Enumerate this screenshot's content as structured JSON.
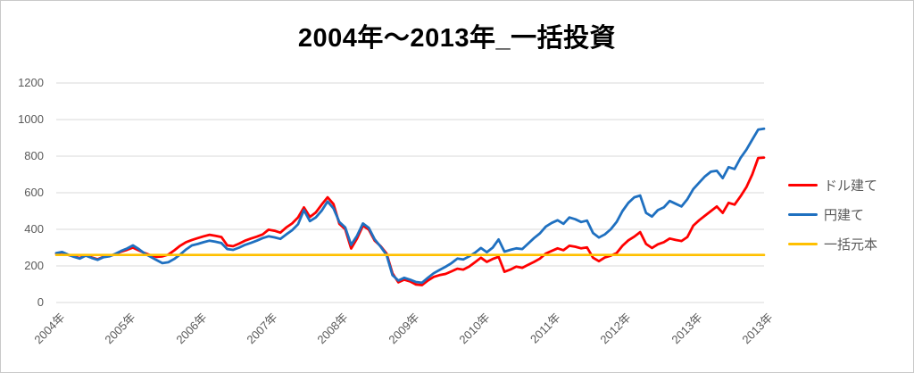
{
  "title": "2004年〜2013年_一括投資",
  "colors": {
    "grid": "#d9d9d9",
    "axis_text": "#595959",
    "title_text": "#000000",
    "dollar_series": "#ff0000",
    "yen_series": "#1f70c0",
    "principal_series": "#ffc000"
  },
  "legend": {
    "position": "right",
    "items": [
      {
        "label": "ドル建て",
        "color": "#ff0000"
      },
      {
        "label": "円建て",
        "color": "#1f70c0"
      },
      {
        "label": "一括元本",
        "color": "#ffc000"
      }
    ]
  },
  "chart_data": {
    "type": "line",
    "title": "2004年〜2013年_一括投資",
    "xlabel": "",
    "ylabel": "",
    "grid": true,
    "legend_position": "right",
    "x_axis": {
      "range": [
        2004,
        2014
      ],
      "tick_values": [
        2004,
        2005,
        2006,
        2007,
        2008,
        2009,
        2010,
        2011,
        2012,
        2013,
        2014
      ],
      "tick_labels": [
        "2004年",
        "2005年",
        "2006年",
        "2007年",
        "2008年",
        "2009年",
        "2010年",
        "2011年",
        "2012年",
        "2013年",
        "2013年"
      ]
    },
    "y_axis": {
      "range": [
        0,
        1200
      ],
      "tick_values": [
        0,
        200,
        400,
        600,
        800,
        1000,
        1200
      ],
      "tick_labels": [
        "0",
        "200",
        "400",
        "600",
        "800",
        "1000",
        "1200"
      ]
    },
    "series": [
      {
        "id": "dollar",
        "name": "ドル建て",
        "color": "#ff0000",
        "width": 2.8,
        "x_start": 2004.0,
        "x_step_years": 0.0833333,
        "values": [
          268,
          274,
          260,
          252,
          243,
          258,
          247,
          236,
          250,
          254,
          264,
          278,
          288,
          300,
          285,
          270,
          258,
          250,
          252,
          262,
          285,
          310,
          330,
          342,
          352,
          362,
          370,
          365,
          358,
          312,
          308,
          322,
          338,
          350,
          360,
          372,
          398,
          392,
          382,
          410,
          432,
          465,
          520,
          468,
          492,
          535,
          575,
          538,
          430,
          400,
          295,
          350,
          420,
          398,
          338,
          308,
          268,
          160,
          110,
          125,
          115,
          98,
          95,
          120,
          140,
          150,
          156,
          170,
          185,
          180,
          196,
          220,
          245,
          222,
          238,
          250,
          168,
          180,
          196,
          190,
          206,
          222,
          240,
          268,
          282,
          296,
          286,
          310,
          305,
          296,
          301,
          245,
          226,
          246,
          256,
          270,
          310,
          340,
          360,
          385,
          320,
          298,
          318,
          330,
          350,
          342,
          336,
          358,
          420,
          450,
          475,
          500,
          525,
          490,
          545,
          535,
          580,
          630,
          700,
          790,
          792
        ]
      },
      {
        "id": "yen",
        "name": "円建て",
        "color": "#1f70c0",
        "width": 2.8,
        "x_start": 2004.0,
        "x_step_years": 0.0833333,
        "values": [
          270,
          276,
          262,
          250,
          240,
          256,
          244,
          233,
          248,
          252,
          266,
          282,
          295,
          312,
          292,
          268,
          250,
          232,
          215,
          220,
          238,
          262,
          290,
          312,
          320,
          330,
          338,
          332,
          325,
          292,
          288,
          300,
          315,
          326,
          338,
          352,
          362,
          356,
          348,
          372,
          395,
          428,
          505,
          445,
          465,
          502,
          552,
          515,
          440,
          410,
          315,
          365,
          432,
          408,
          345,
          305,
          260,
          150,
          120,
          135,
          125,
          112,
          108,
          135,
          160,
          178,
          195,
          215,
          240,
          235,
          252,
          272,
          298,
          275,
          300,
          345,
          278,
          288,
          296,
          292,
          322,
          352,
          378,
          415,
          435,
          450,
          430,
          465,
          455,
          440,
          448,
          380,
          355,
          372,
          400,
          440,
          500,
          545,
          575,
          585,
          490,
          470,
          505,
          520,
          555,
          540,
          525,
          565,
          620,
          655,
          690,
          715,
          720,
          680,
          740,
          730,
          790,
          835,
          890,
          945,
          950
        ]
      },
      {
        "id": "principal",
        "name": "一括元本",
        "color": "#ffc000",
        "width": 2.6,
        "x": [
          2004.0,
          2014.0
        ],
        "values": [
          260,
          260
        ]
      }
    ]
  }
}
